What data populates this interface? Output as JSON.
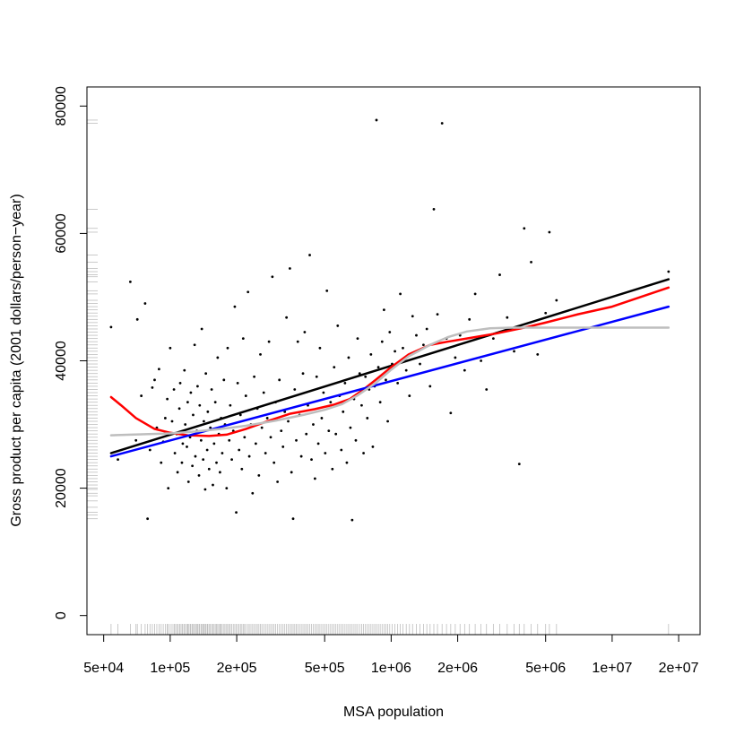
{
  "chart_data": {
    "type": "scatter",
    "title": "",
    "xlabel": "MSA population",
    "ylabel": "Gross product per capita (2001 dollars/person−year)",
    "x_scale": "log10",
    "xlim": [
      42000,
      25000000
    ],
    "ylim": [
      -3000,
      83000
    ],
    "x_ticks": [
      {
        "value": 50000,
        "label": "5e+04"
      },
      {
        "value": 100000,
        "label": "1e+05"
      },
      {
        "value": 200000,
        "label": "2e+05"
      },
      {
        "value": 500000,
        "label": "5e+05"
      },
      {
        "value": 1000000,
        "label": "1e+06"
      },
      {
        "value": 2000000,
        "label": "2e+06"
      },
      {
        "value": 5000000,
        "label": "5e+06"
      },
      {
        "value": 10000000,
        "label": "1e+07"
      },
      {
        "value": 20000000,
        "label": "2e+07"
      }
    ],
    "y_ticks": [
      {
        "value": 0,
        "label": "0"
      },
      {
        "value": 20000,
        "label": "20000"
      },
      {
        "value": 40000,
        "label": "40000"
      },
      {
        "value": 60000,
        "label": "60000"
      },
      {
        "value": 80000,
        "label": "80000"
      }
    ],
    "grid": false,
    "legend": "none",
    "rugs": true,
    "points_color": "#000000",
    "rug_color": "#bebebe",
    "points": [
      [
        54000,
        45300
      ],
      [
        58000,
        24500
      ],
      [
        66000,
        52400
      ],
      [
        70000,
        27500
      ],
      [
        71000,
        46500
      ],
      [
        74000,
        34500
      ],
      [
        77000,
        49000
      ],
      [
        79000,
        15200
      ],
      [
        81000,
        26000
      ],
      [
        83000,
        35800
      ],
      [
        85000,
        37000
      ],
      [
        87000,
        29500
      ],
      [
        89000,
        38700
      ],
      [
        91000,
        24000
      ],
      [
        93000,
        27300
      ],
      [
        95000,
        31000
      ],
      [
        97000,
        34000
      ],
      [
        98000,
        20000
      ],
      [
        100000,
        42000
      ],
      [
        102000,
        30500
      ],
      [
        104000,
        35500
      ],
      [
        105000,
        25500
      ],
      [
        107000,
        28500
      ],
      [
        108000,
        22500
      ],
      [
        110000,
        32500
      ],
      [
        111000,
        36500
      ],
      [
        113000,
        24000
      ],
      [
        114000,
        27000
      ],
      [
        116000,
        38500
      ],
      [
        117000,
        30000
      ],
      [
        119000,
        26500
      ],
      [
        120000,
        33500
      ],
      [
        121000,
        21000
      ],
      [
        123000,
        28000
      ],
      [
        124000,
        35000
      ],
      [
        126000,
        23500
      ],
      [
        127000,
        31500
      ],
      [
        129000,
        42500
      ],
      [
        130000,
        25000
      ],
      [
        132000,
        29000
      ],
      [
        133000,
        36000
      ],
      [
        135000,
        22000
      ],
      [
        136000,
        33000
      ],
      [
        138000,
        27500
      ],
      [
        139000,
        45000
      ],
      [
        141000,
        24500
      ],
      [
        142000,
        30500
      ],
      [
        144000,
        19800
      ],
      [
        145000,
        38000
      ],
      [
        147000,
        26000
      ],
      [
        148000,
        32000
      ],
      [
        150000,
        23000
      ],
      [
        152000,
        29500
      ],
      [
        154000,
        35500
      ],
      [
        156000,
        20500
      ],
      [
        158000,
        27000
      ],
      [
        160000,
        33500
      ],
      [
        162000,
        24000
      ],
      [
        164000,
        40500
      ],
      [
        166000,
        28500
      ],
      [
        168000,
        22500
      ],
      [
        170000,
        31000
      ],
      [
        172000,
        25500
      ],
      [
        175000,
        37000
      ],
      [
        177000,
        30000
      ],
      [
        180000,
        20000
      ],
      [
        182000,
        42000
      ],
      [
        185000,
        27500
      ],
      [
        187000,
        33000
      ],
      [
        190000,
        24500
      ],
      [
        193000,
        29000
      ],
      [
        196000,
        48500
      ],
      [
        199000,
        16200
      ],
      [
        202000,
        36500
      ],
      [
        205000,
        26000
      ],
      [
        208000,
        31500
      ],
      [
        211000,
        23000
      ],
      [
        214000,
        43500
      ],
      [
        217000,
        28000
      ],
      [
        220000,
        34500
      ],
      [
        225000,
        50800
      ],
      [
        228000,
        25000
      ],
      [
        232000,
        30000
      ],
      [
        236000,
        19200
      ],
      [
        240000,
        37500
      ],
      [
        244000,
        27000
      ],
      [
        248000,
        32500
      ],
      [
        252000,
        22000
      ],
      [
        256000,
        41000
      ],
      [
        260000,
        29500
      ],
      [
        265000,
        35000
      ],
      [
        270000,
        25500
      ],
      [
        275000,
        31000
      ],
      [
        280000,
        43000
      ],
      [
        285000,
        28000
      ],
      [
        290000,
        53200
      ],
      [
        295000,
        24000
      ],
      [
        300000,
        33500
      ],
      [
        306000,
        21000
      ],
      [
        312000,
        37000
      ],
      [
        318000,
        29000
      ],
      [
        324000,
        26500
      ],
      [
        330000,
        32000
      ],
      [
        336000,
        46800
      ],
      [
        342000,
        30500
      ],
      [
        348000,
        54500
      ],
      [
        354000,
        22500
      ],
      [
        360000,
        15200
      ],
      [
        366000,
        35500
      ],
      [
        372000,
        27500
      ],
      [
        378000,
        43000
      ],
      [
        385000,
        31500
      ],
      [
        392000,
        25000
      ],
      [
        399000,
        38000
      ],
      [
        406000,
        44500
      ],
      [
        413000,
        28500
      ],
      [
        420000,
        33000
      ],
      [
        428000,
        56600
      ],
      [
        436000,
        24500
      ],
      [
        444000,
        30000
      ],
      [
        452000,
        21500
      ],
      [
        460000,
        37500
      ],
      [
        468000,
        27000
      ],
      [
        476000,
        42000
      ],
      [
        485000,
        31000
      ],
      [
        494000,
        35000
      ],
      [
        503000,
        25500
      ],
      [
        512000,
        51000
      ],
      [
        522000,
        29000
      ],
      [
        532000,
        33500
      ],
      [
        542000,
        23000
      ],
      [
        552000,
        39000
      ],
      [
        562000,
        28500
      ],
      [
        573000,
        45500
      ],
      [
        584000,
        34500
      ],
      [
        595000,
        26000
      ],
      [
        606000,
        32000
      ],
      [
        618000,
        36500
      ],
      [
        630000,
        24000
      ],
      [
        642000,
        40500
      ],
      [
        654000,
        29500
      ],
      [
        666000,
        15000
      ],
      [
        679000,
        34000
      ],
      [
        692000,
        27500
      ],
      [
        705000,
        43500
      ],
      [
        720000,
        38000
      ],
      [
        735000,
        33000
      ],
      [
        750000,
        25500
      ],
      [
        765000,
        37500
      ],
      [
        780000,
        31000
      ],
      [
        795000,
        35500
      ],
      [
        810000,
        41000
      ],
      [
        826000,
        26500
      ],
      [
        842000,
        36000
      ],
      [
        858000,
        77800
      ],
      [
        875000,
        39000
      ],
      [
        892000,
        33500
      ],
      [
        910000,
        43000
      ],
      [
        928000,
        48000
      ],
      [
        946000,
        37000
      ],
      [
        965000,
        30500
      ],
      [
        985000,
        44500
      ],
      [
        1010000,
        39500
      ],
      [
        1040000,
        41500
      ],
      [
        1070000,
        36500
      ],
      [
        1100000,
        50500
      ],
      [
        1130000,
        42000
      ],
      [
        1170000,
        38500
      ],
      [
        1210000,
        34500
      ],
      [
        1250000,
        47000
      ],
      [
        1300000,
        44000
      ],
      [
        1350000,
        39500
      ],
      [
        1400000,
        42500
      ],
      [
        1450000,
        45000
      ],
      [
        1500000,
        36000
      ],
      [
        1560000,
        63800
      ],
      [
        1620000,
        47300
      ],
      [
        1700000,
        77300
      ],
      [
        1780000,
        43500
      ],
      [
        1860000,
        31800
      ],
      [
        1950000,
        40500
      ],
      [
        2050000,
        44000
      ],
      [
        2150000,
        38500
      ],
      [
        2260000,
        46500
      ],
      [
        2400000,
        50500
      ],
      [
        2550000,
        40000
      ],
      [
        2700000,
        35500
      ],
      [
        2900000,
        43500
      ],
      [
        3100000,
        53500
      ],
      [
        3350000,
        46800
      ],
      [
        3600000,
        41500
      ],
      [
        3800000,
        23800
      ],
      [
        4000000,
        60800
      ],
      [
        4300000,
        55500
      ],
      [
        4600000,
        41000
      ],
      [
        5000000,
        47500
      ],
      [
        5200000,
        60200
      ],
      [
        5600000,
        49500
      ],
      [
        18000000,
        54000
      ]
    ],
    "rug_y": [
      15200,
      15800,
      16200,
      17000,
      18000,
      18800,
      19200,
      19800,
      20000,
      20500,
      21000,
      21500,
      22000,
      22500,
      23000,
      23500,
      24000,
      24500,
      25000,
      25500,
      26000,
      26500,
      27000,
      27500,
      28000,
      28500,
      29000,
      29500,
      30000,
      30500,
      31000,
      31500,
      32000,
      32500,
      33000,
      33500,
      34000,
      34500,
      35000,
      35500,
      36000,
      36500,
      37000,
      37500,
      38000,
      38500,
      39000,
      39500,
      40000,
      40500,
      41000,
      41500,
      42000,
      42500,
      43000,
      43500,
      44000,
      44500,
      45000,
      45500,
      46000,
      46500,
      47000,
      47500,
      48000,
      48500,
      49000,
      49500,
      50500,
      51000,
      52400,
      53200,
      53500,
      54000,
      54500,
      55500,
      56600,
      60200,
      60800,
      63800,
      77300,
      77800
    ],
    "series": [
      {
        "color": "#000000",
        "x": [
          54000,
          18000000
        ],
        "y": [
          25500,
          52800
        ]
      },
      {
        "color": "#ff0000",
        "x": [
          54000,
          60000,
          70000,
          85000,
          100000,
          120000,
          150000,
          180000,
          220000,
          280000,
          350000,
          450000,
          550000,
          650000,
          750000,
          850000,
          1000000,
          1200000,
          1500000,
          1800000,
          2200000,
          3000000,
          4000000,
          5000000,
          7000000,
          10000000,
          18000000
        ],
        "y": [
          34300,
          33000,
          31000,
          29300,
          28700,
          28300,
          28200,
          28400,
          29300,
          30600,
          31700,
          32400,
          33100,
          34000,
          35500,
          37000,
          39000,
          41000,
          42500,
          43000,
          43500,
          44300,
          45200,
          46000,
          47300,
          48500,
          51500
        ]
      },
      {
        "color": "#0000ff",
        "x": [
          54000,
          18000000
        ],
        "y": [
          25000,
          48500
        ]
      },
      {
        "color": "#bebebe",
        "x": [
          54000,
          80000,
          100000,
          130000,
          170000,
          220000,
          300000,
          400000,
          500000,
          600000,
          700000,
          850000,
          1000000,
          1200000,
          1500000,
          1800000,
          2200000,
          2800000,
          3500000,
          4500000,
          6000000,
          10000000,
          18000000
        ],
        "y": [
          28300,
          28500,
          28600,
          28900,
          29300,
          29800,
          30600,
          31500,
          32300,
          33200,
          34500,
          36500,
          38600,
          40700,
          42500,
          43700,
          44600,
          45100,
          45200,
          45200,
          45200,
          45200,
          45200
        ]
      }
    ]
  }
}
